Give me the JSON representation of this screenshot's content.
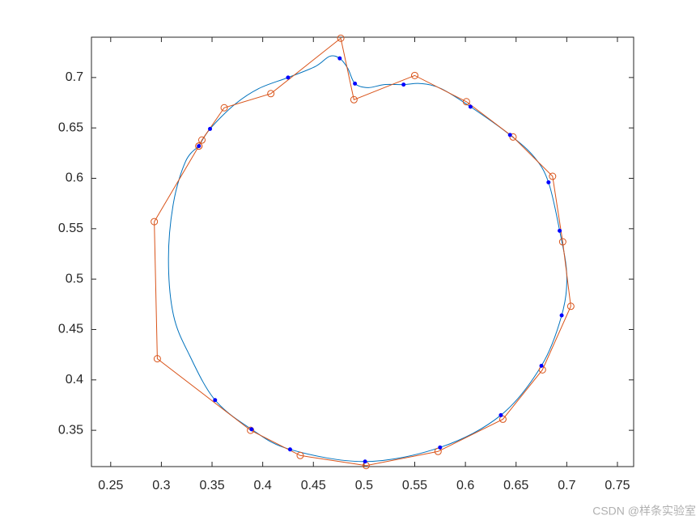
{
  "chart_data": {
    "type": "line",
    "xlim": [
      0.231,
      0.766
    ],
    "ylim": [
      0.314,
      0.74
    ],
    "xticks": [
      0.25,
      0.3,
      0.35,
      0.4,
      0.45,
      0.5,
      0.55,
      0.6,
      0.65,
      0.7,
      0.75
    ],
    "yticks": [
      0.35,
      0.4,
      0.45,
      0.5,
      0.55,
      0.6,
      0.65,
      0.7
    ],
    "series": [
      {
        "color": "#0072bd",
        "marker": "none",
        "smooth": true,
        "x": [
          0.337,
          0.348,
          0.372,
          0.396,
          0.425,
          0.452,
          0.466,
          0.476,
          0.484,
          0.491,
          0.504,
          0.52,
          0.539,
          0.556,
          0.576,
          0.605,
          0.644,
          0.668,
          0.682,
          0.693,
          0.7,
          0.695,
          0.675,
          0.635,
          0.575,
          0.501,
          0.427,
          0.389,
          0.353,
          0.328,
          0.312,
          0.307,
          0.312,
          0.324,
          0.337
        ],
        "y": [
          0.632,
          0.649,
          0.673,
          0.689,
          0.7,
          0.711,
          0.721,
          0.719,
          0.709,
          0.694,
          0.69,
          0.693,
          0.693,
          0.694,
          0.689,
          0.671,
          0.643,
          0.621,
          0.596,
          0.548,
          0.504,
          0.464,
          0.414,
          0.365,
          0.333,
          0.319,
          0.331,
          0.351,
          0.38,
          0.424,
          0.464,
          0.52,
          0.576,
          0.617,
          0.632
        ]
      },
      {
        "color": "#d95319",
        "marker": "circle",
        "x": [
          0.337,
          0.34,
          0.362,
          0.408,
          0.477,
          0.49,
          0.55,
          0.601,
          0.647,
          0.686,
          0.696,
          0.704,
          0.676,
          0.637,
          0.573,
          0.502,
          0.437,
          0.388,
          0.296,
          0.293,
          0.337
        ],
        "y": [
          0.632,
          0.638,
          0.67,
          0.684,
          0.739,
          0.678,
          0.702,
          0.676,
          0.641,
          0.602,
          0.537,
          0.473,
          0.41,
          0.361,
          0.329,
          0.315,
          0.325,
          0.35,
          0.421,
          0.557,
          0.632
        ]
      },
      {
        "color": "#0000ff",
        "marker": "dot",
        "lines": false,
        "x": [
          0.337,
          0.348,
          0.425,
          0.476,
          0.491,
          0.539,
          0.605,
          0.644,
          0.682,
          0.693,
          0.695,
          0.675,
          0.635,
          0.575,
          0.501,
          0.427,
          0.389,
          0.353
        ],
        "y": [
          0.632,
          0.649,
          0.7,
          0.719,
          0.694,
          0.693,
          0.671,
          0.643,
          0.596,
          0.548,
          0.464,
          0.414,
          0.365,
          0.333,
          0.319,
          0.331,
          0.351,
          0.38
        ]
      }
    ]
  },
  "watermark": "CSDN @样条实验室"
}
